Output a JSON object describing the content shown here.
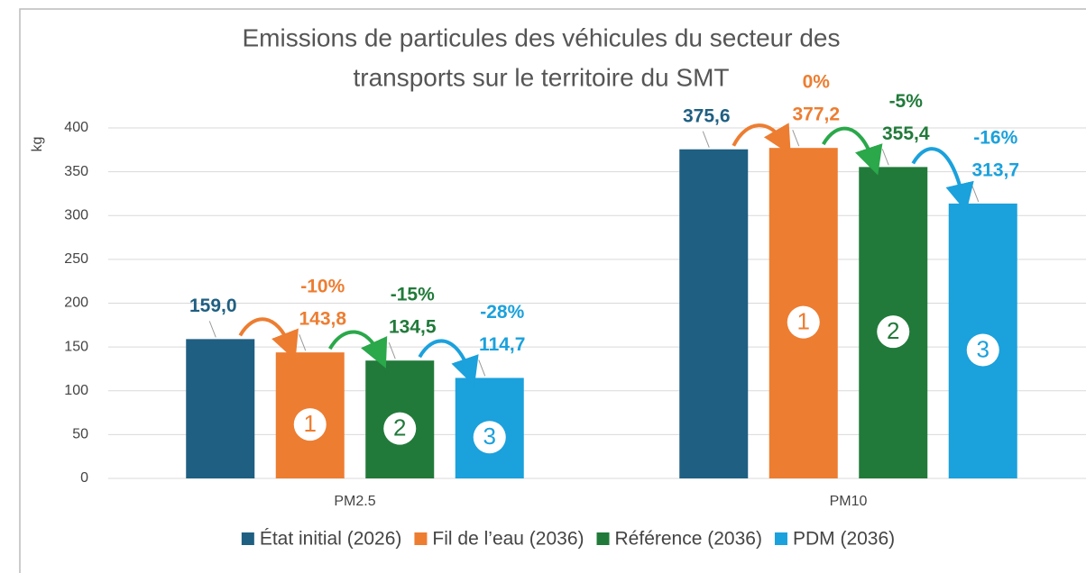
{
  "chart_data": {
    "type": "bar",
    "title": [
      "Emissions de particules des véhicules du secteur des",
      "transports sur le territoire du SMT"
    ],
    "ylabel": "kg",
    "categories": [
      "PM2.5",
      "PM10"
    ],
    "ylim": [
      0,
      400
    ],
    "yticks": [
      0,
      50,
      100,
      150,
      200,
      250,
      300,
      350,
      400
    ],
    "grid": true,
    "legend": "bottom",
    "series": [
      {
        "name": "État initial (2026)",
        "color": "#1f5f82",
        "values": [
          159.0,
          375.6
        ],
        "value_labels": [
          "159,0",
          "375,6"
        ]
      },
      {
        "name": "Fil de l’eau (2036)",
        "color": "#ed7d31",
        "values": [
          143.8,
          377.2
        ],
        "value_labels": [
          "143,8",
          "377,2"
        ],
        "change_labels": [
          "-10%",
          "0%"
        ],
        "badge": "1"
      },
      {
        "name": "Référence (2036)",
        "color": "#217a3a",
        "values": [
          134.5,
          355.4
        ],
        "value_labels": [
          "134,5",
          "355,4"
        ],
        "change_labels": [
          "-15%",
          "-5%"
        ],
        "badge": "2"
      },
      {
        "name": "PDM (2036)",
        "color": "#1ba1dc",
        "values": [
          114.7,
          313.7
        ],
        "value_labels": [
          "114,7",
          "313,7"
        ],
        "change_labels": [
          "-28%",
          "-16%"
        ],
        "badge": "3"
      }
    ]
  }
}
